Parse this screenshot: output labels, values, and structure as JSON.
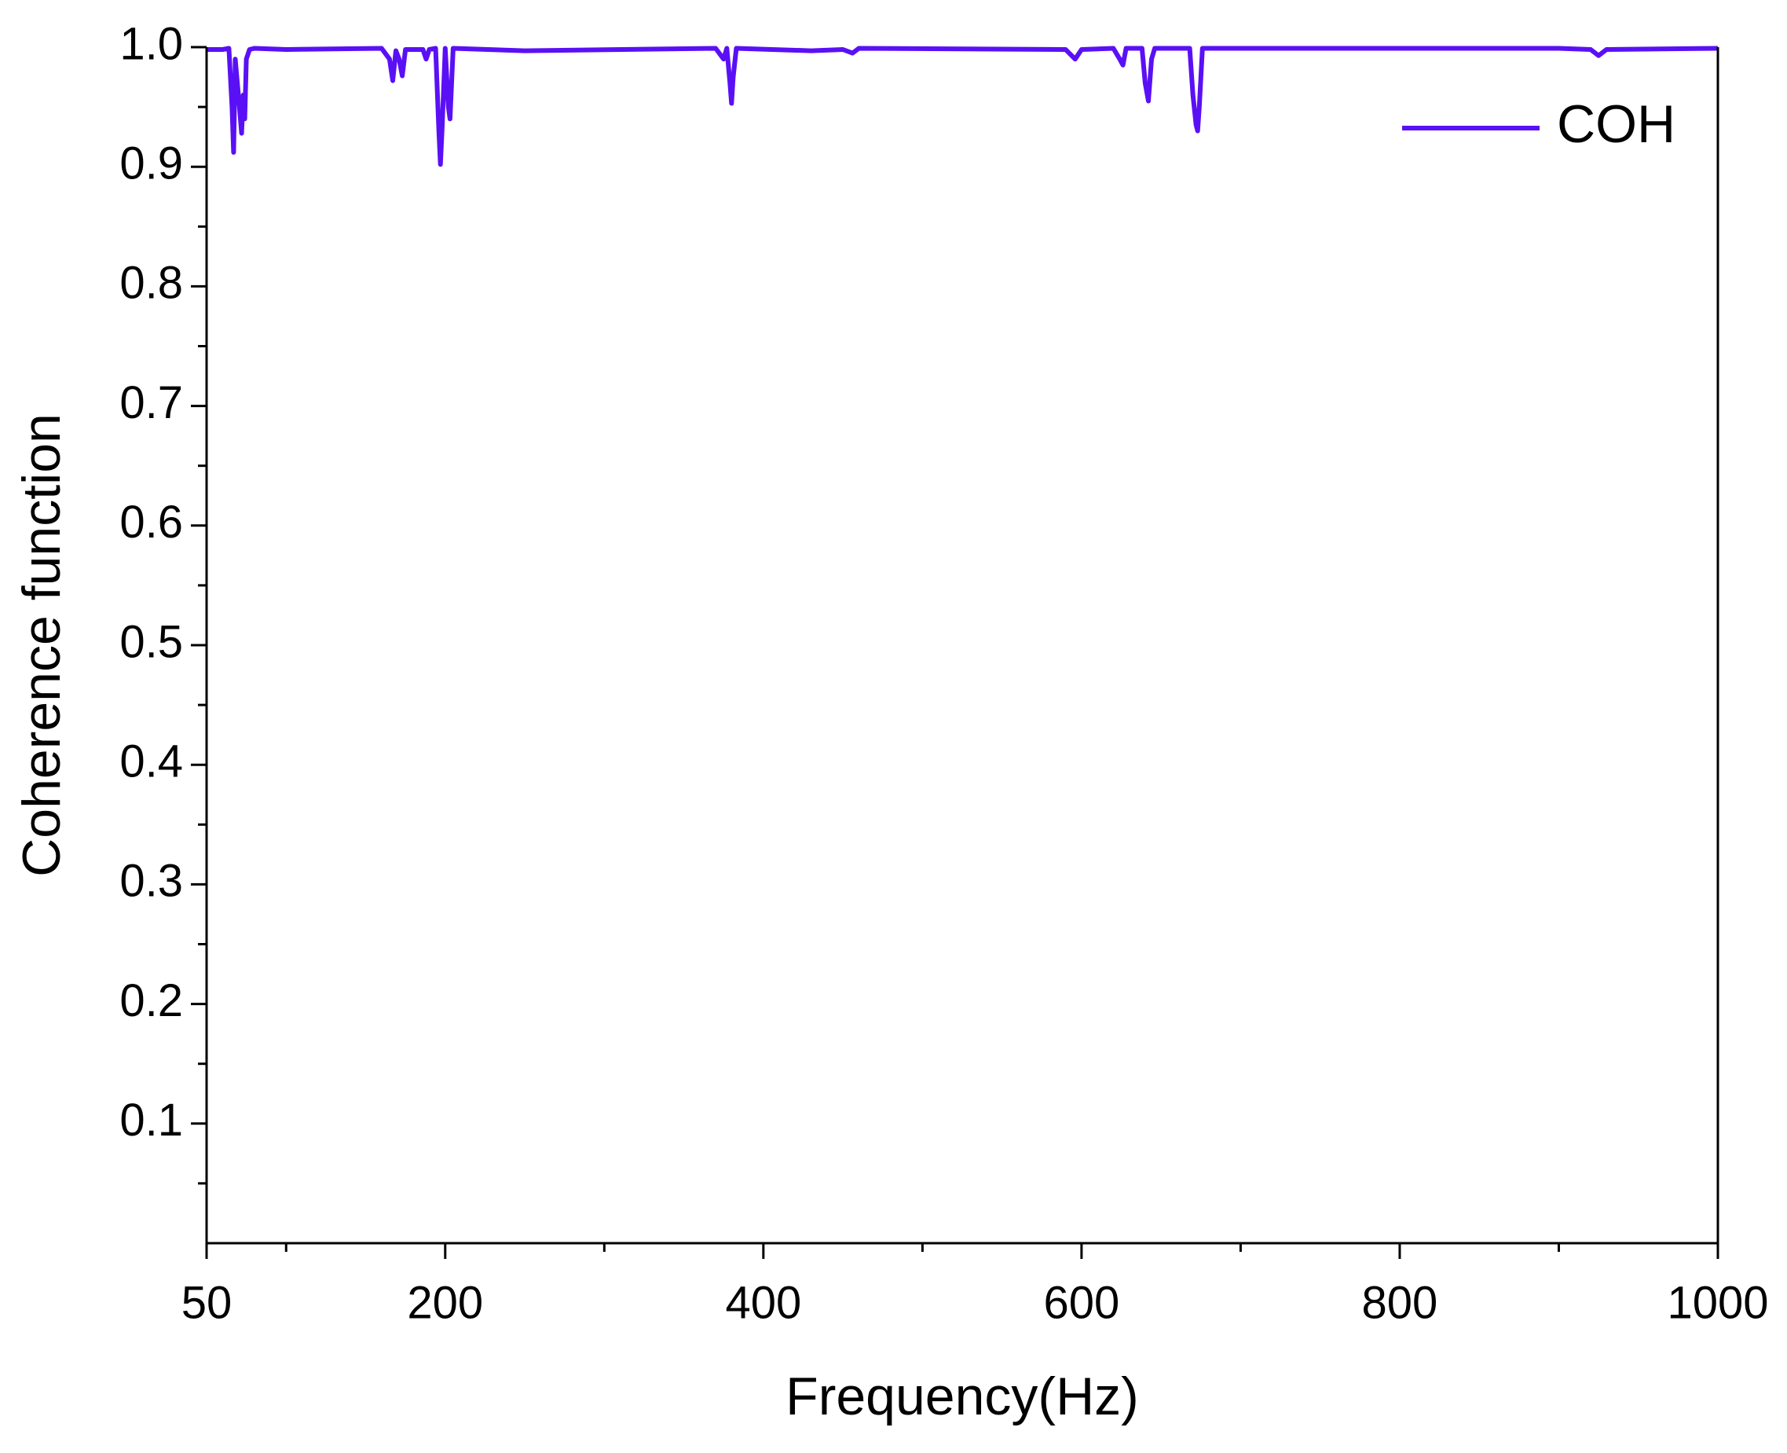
{
  "chart_data": {
    "type": "line",
    "xlabel": "Frequency(Hz)",
    "ylabel": "Coherence function",
    "x": [
      50,
      60,
      64,
      66,
      67,
      68,
      70,
      72,
      73,
      74,
      75,
      77,
      80,
      100,
      160,
      165,
      167,
      169,
      171,
      173,
      175,
      186,
      188,
      190,
      194,
      196,
      197,
      198,
      200,
      202,
      203,
      205,
      250,
      370,
      375,
      377,
      379,
      380,
      381,
      383,
      430,
      450,
      456,
      460,
      590,
      596,
      600,
      620,
      624,
      626,
      628,
      638,
      640,
      642,
      644,
      646,
      668,
      670,
      672,
      673,
      674,
      676,
      900,
      920,
      925,
      930,
      1000
    ],
    "series": [
      {
        "name": "COH",
        "color": "#5a10f5",
        "values": [
          0.998,
          0.998,
          0.999,
          0.95,
          0.912,
          0.99,
          0.96,
          0.928,
          0.96,
          0.94,
          0.99,
          0.998,
          0.999,
          0.998,
          0.999,
          0.99,
          0.972,
          0.997,
          0.99,
          0.976,
          0.998,
          0.998,
          0.99,
          0.998,
          0.999,
          0.93,
          0.902,
          0.93,
          0.999,
          0.95,
          0.94,
          0.999,
          0.997,
          0.999,
          0.99,
          0.999,
          0.97,
          0.953,
          0.975,
          0.999,
          0.997,
          0.998,
          0.995,
          0.999,
          0.998,
          0.99,
          0.998,
          0.999,
          0.99,
          0.985,
          0.999,
          0.999,
          0.97,
          0.955,
          0.99,
          0.999,
          0.999,
          0.96,
          0.935,
          0.93,
          0.95,
          0.999,
          0.999,
          0.998,
          0.993,
          0.998,
          0.999
        ]
      }
    ],
    "xlim": [
      50,
      1000
    ],
    "xticks": [
      50,
      200,
      400,
      600,
      800,
      1000
    ],
    "minor_xticks": [
      100,
      300,
      500,
      700,
      900
    ],
    "ylim": [
      0,
      1
    ],
    "yticks": [
      0.1,
      0.2,
      0.3,
      0.4,
      0.5,
      0.6,
      0.7,
      0.8,
      0.9,
      {
        "value": 1,
        "label": "1.0"
      }
    ],
    "minor_yticks": [
      0.05,
      0.15,
      0.25,
      0.35,
      0.45,
      0.55,
      0.65,
      0.75,
      0.85,
      0.95
    ],
    "legend": "upper right",
    "grid": false
  }
}
